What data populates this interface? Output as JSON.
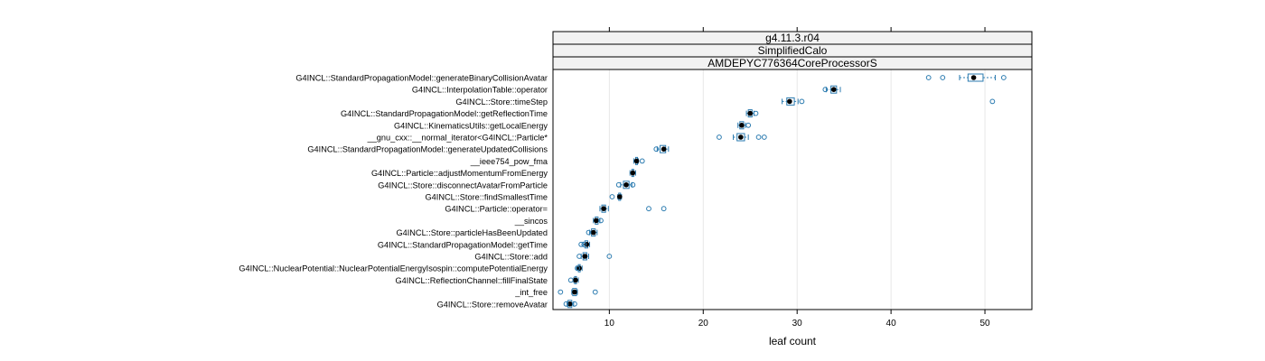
{
  "chart_data": {
    "type": "box",
    "strips": [
      "g4.11.3.r04",
      "SimplifiedCalo",
      "AMDEPYC776364CoreProcessorS"
    ],
    "xlabel": "leaf count",
    "xlim": [
      4,
      55
    ],
    "x_ticks": [
      10,
      20,
      30,
      40,
      50
    ],
    "grid": "vertical",
    "colors": {
      "box": "#2b7bb0",
      "median": "#000000",
      "strip_bg": "#f2f2f2",
      "grid": "#e6e6e6"
    },
    "categories": [
      {
        "label": "G4INCL::StandardPropagationModel::generateBinaryCollisionAvatar",
        "min": 47.3,
        "q1": 48.2,
        "median": 48.8,
        "q3": 49.8,
        "max": 51.1,
        "outliers": [
          44.0,
          45.5,
          52.0
        ]
      },
      {
        "label": "G4INCL::InterpolationTable::operator",
        "min": 33.1,
        "q1": 33.6,
        "median": 33.9,
        "q3": 34.2,
        "max": 34.6,
        "outliers": [
          33.0
        ]
      },
      {
        "label": "G4INCL::Store::timeStep",
        "min": 28.4,
        "q1": 28.9,
        "median": 29.2,
        "q3": 29.7,
        "max": 30.1,
        "outliers": [
          30.5,
          50.8
        ]
      },
      {
        "label": "G4INCL::StandardPropagationModel::getReflectionTime",
        "min": 24.6,
        "q1": 24.8,
        "median": 25.0,
        "q3": 25.2,
        "max": 25.4,
        "outliers": [
          25.6
        ]
      },
      {
        "label": "G4INCL::KinematicsUtils::getLocalEnergy",
        "min": 23.7,
        "q1": 23.9,
        "median": 24.1,
        "q3": 24.3,
        "max": 24.5,
        "outliers": [
          24.8
        ]
      },
      {
        "label": "__gnu_cxx::__normal_iterator<G4INCL::Particle*",
        "min": 23.2,
        "q1": 23.6,
        "median": 24.0,
        "q3": 24.4,
        "max": 24.8,
        "outliers": [
          21.7,
          25.9,
          26.5
        ]
      },
      {
        "label": "G4INCL::StandardPropagationModel::generateUpdatedCollisions",
        "min": 15.1,
        "q1": 15.4,
        "median": 15.8,
        "q3": 16.0,
        "max": 16.3,
        "outliers": [
          15.0
        ]
      },
      {
        "label": "__ieee754_pow_fma",
        "min": 12.6,
        "q1": 12.8,
        "median": 12.9,
        "q3": 13.0,
        "max": 13.1,
        "outliers": [
          13.5
        ]
      },
      {
        "label": "G4INCL::Particle::adjustMomentumFromEnergy",
        "min": 12.2,
        "q1": 12.4,
        "median": 12.5,
        "q3": 12.6,
        "max": 12.8,
        "outliers": []
      },
      {
        "label": "G4INCL::Store::disconnectAvatarFromParticle",
        "min": 11.2,
        "q1": 11.5,
        "median": 11.8,
        "q3": 12.1,
        "max": 12.4,
        "outliers": [
          11.0,
          12.5
        ]
      },
      {
        "label": "G4INCL::Store::findSmallestTime",
        "min": 10.9,
        "q1": 11.0,
        "median": 11.1,
        "q3": 11.2,
        "max": 11.3,
        "outliers": [
          10.3
        ]
      },
      {
        "label": "G4INCL::Particle::operator=",
        "min": 9.0,
        "q1": 9.2,
        "median": 9.4,
        "q3": 9.6,
        "max": 9.9,
        "outliers": [
          14.2,
          15.8
        ]
      },
      {
        "label": "__sincos",
        "min": 8.3,
        "q1": 8.5,
        "median": 8.6,
        "q3": 8.8,
        "max": 9.0,
        "outliers": [
          9.1
        ]
      },
      {
        "label": "G4INCL::Store::particleHasBeenUpdated",
        "min": 7.9,
        "q1": 8.1,
        "median": 8.3,
        "q3": 8.5,
        "max": 8.7,
        "outliers": [
          7.8
        ]
      },
      {
        "label": "G4INCL::StandardPropagationModel::getTime",
        "min": 7.2,
        "q1": 7.4,
        "median": 7.6,
        "q3": 7.7,
        "max": 7.9,
        "outliers": [
          7.0,
          7.3
        ]
      },
      {
        "label": "G4INCL::Store::add",
        "min": 7.0,
        "q1": 7.2,
        "median": 7.4,
        "q3": 7.6,
        "max": 7.8,
        "outliers": [
          6.8,
          10.0
        ]
      },
      {
        "label": "G4INCL::NuclearPotential::NuclearPotentialEnergyIsospin::computePotentialEnergy",
        "min": 6.5,
        "q1": 6.7,
        "median": 6.8,
        "q3": 6.9,
        "max": 7.1,
        "outliers": [
          6.6
        ]
      },
      {
        "label": "G4INCL::ReflectionChannel::fillFinalState",
        "min": 6.2,
        "q1": 6.3,
        "median": 6.4,
        "q3": 6.5,
        "max": 6.7,
        "outliers": [
          5.9
        ]
      },
      {
        "label": "_int_free",
        "min": 6.0,
        "q1": 6.1,
        "median": 6.3,
        "q3": 6.5,
        "max": 6.6,
        "outliers": [
          4.8,
          8.5
        ]
      },
      {
        "label": "G4INCL::Store::removeAvatar",
        "min": 5.5,
        "q1": 5.6,
        "median": 5.8,
        "q3": 6.0,
        "max": 6.2,
        "outliers": [
          5.4,
          6.3
        ]
      }
    ]
  }
}
